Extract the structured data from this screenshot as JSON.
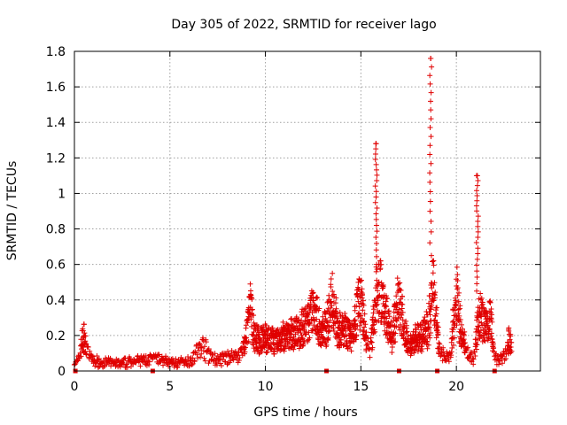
{
  "chart_data": {
    "type": "scatter",
    "title": "Day 305 of 2022, SRMTID for receiver lago",
    "xlabel": "GPS time / hours",
    "ylabel": "SRMTID / TECUs",
    "xlim": [
      0,
      24.4
    ],
    "ylim": [
      0,
      1.8
    ],
    "x_ticks": [
      0,
      5,
      10,
      15,
      20
    ],
    "x_tick_labels": [
      "0",
      "5",
      "10",
      "15",
      "20"
    ],
    "y_ticks": [
      0,
      0.2,
      0.4,
      0.6,
      0.8,
      1.0,
      1.2,
      1.4,
      1.6,
      1.8
    ],
    "y_tick_labels": [
      "0",
      "0.2",
      "0.4",
      "0.6",
      "0.8",
      "1",
      "1.2",
      "1.4",
      "1.6",
      "1.8"
    ],
    "grid": true,
    "marker": "+",
    "color": "#e00000",
    "profile": [
      [
        0.0,
        0.04
      ],
      [
        0.2,
        0.06
      ],
      [
        0.4,
        0.18
      ],
      [
        0.5,
        0.2
      ],
      [
        0.7,
        0.1
      ],
      [
        1.0,
        0.06
      ],
      [
        1.5,
        0.05
      ],
      [
        2.0,
        0.05
      ],
      [
        2.5,
        0.04
      ],
      [
        3.0,
        0.06
      ],
      [
        3.5,
        0.06
      ],
      [
        4.0,
        0.07
      ],
      [
        4.5,
        0.07
      ],
      [
        5.0,
        0.05
      ],
      [
        5.5,
        0.05
      ],
      [
        6.0,
        0.06
      ],
      [
        6.5,
        0.12
      ],
      [
        6.7,
        0.15
      ],
      [
        6.9,
        0.12
      ],
      [
        7.2,
        0.08
      ],
      [
        7.5,
        0.06
      ],
      [
        8.0,
        0.08
      ],
      [
        8.5,
        0.09
      ],
      [
        8.8,
        0.12
      ],
      [
        9.0,
        0.2
      ],
      [
        9.2,
        0.38
      ],
      [
        9.4,
        0.22
      ],
      [
        9.6,
        0.18
      ],
      [
        10.0,
        0.19
      ],
      [
        10.5,
        0.17
      ],
      [
        11.0,
        0.2
      ],
      [
        11.5,
        0.22
      ],
      [
        12.0,
        0.26
      ],
      [
        12.3,
        0.3
      ],
      [
        12.6,
        0.38
      ],
      [
        12.9,
        0.22
      ],
      [
        13.2,
        0.26
      ],
      [
        13.5,
        0.42
      ],
      [
        13.8,
        0.24
      ],
      [
        14.2,
        0.25
      ],
      [
        14.5,
        0.2
      ],
      [
        14.8,
        0.35
      ],
      [
        15.0,
        0.42
      ],
      [
        15.3,
        0.15
      ],
      [
        15.5,
        0.12
      ],
      [
        15.8,
        0.45
      ],
      [
        16.0,
        0.5
      ],
      [
        16.3,
        0.35
      ],
      [
        16.6,
        0.2
      ],
      [
        17.0,
        0.42
      ],
      [
        17.2,
        0.3
      ],
      [
        17.5,
        0.14
      ],
      [
        17.8,
        0.18
      ],
      [
        18.2,
        0.2
      ],
      [
        18.5,
        0.25
      ],
      [
        18.8,
        0.5
      ],
      [
        19.1,
        0.12
      ],
      [
        19.4,
        0.08
      ],
      [
        19.7,
        0.12
      ],
      [
        20.0,
        0.45
      ],
      [
        20.3,
        0.2
      ],
      [
        20.6,
        0.1
      ],
      [
        20.9,
        0.07
      ],
      [
        21.2,
        0.35
      ],
      [
        21.5,
        0.25
      ],
      [
        21.8,
        0.3
      ],
      [
        22.0,
        0.08
      ],
      [
        22.3,
        0.07
      ],
      [
        22.5,
        0.1
      ],
      [
        22.8,
        0.2
      ],
      [
        22.9,
        0.1
      ]
    ],
    "spikes": [
      {
        "x": 15.8,
        "y_min": 0.6,
        "y_max": 1.28
      },
      {
        "x": 18.65,
        "y_min": 0.65,
        "y_max": 1.76
      },
      {
        "x": 21.1,
        "y_min": 0.45,
        "y_max": 1.1
      }
    ],
    "zero_markers": [
      0.05,
      4.1,
      13.2,
      17.0,
      19.0,
      22.0
    ]
  }
}
